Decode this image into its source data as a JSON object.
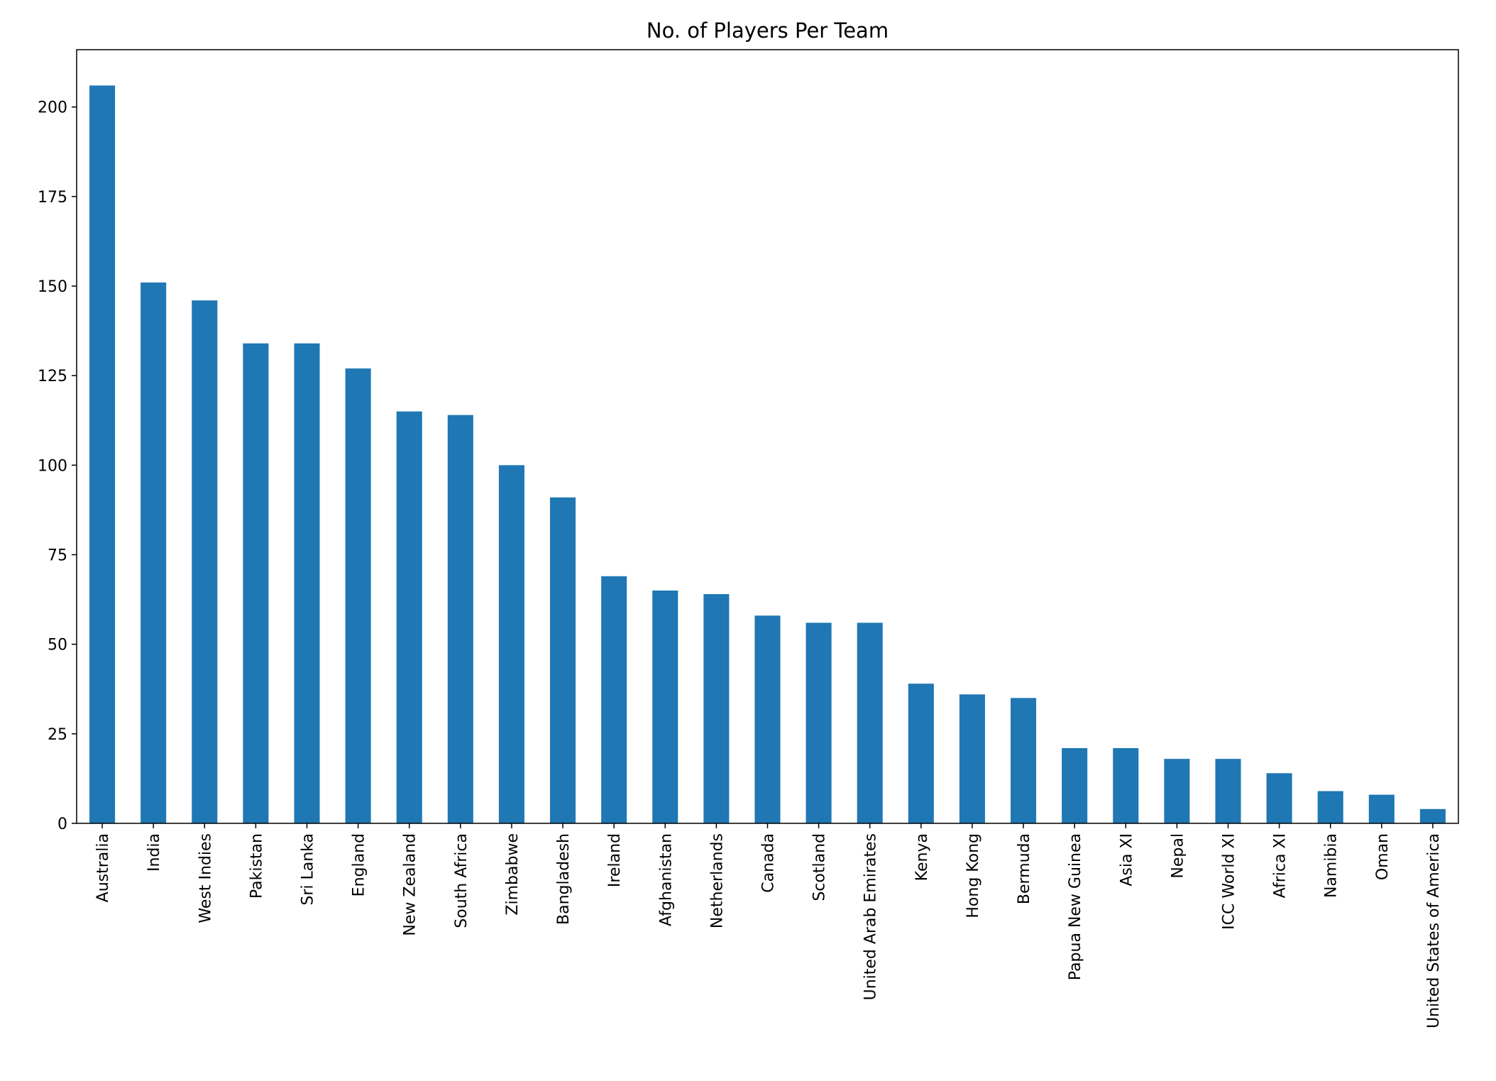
{
  "chart_data": {
    "type": "bar",
    "title": "No. of Players Per Team",
    "xlabel": "",
    "ylabel": "",
    "categories": [
      "Australia",
      "India",
      "West Indies",
      "Pakistan",
      "Sri Lanka",
      "England",
      "New Zealand",
      "South Africa",
      "Zimbabwe",
      "Bangladesh",
      "Ireland",
      "Afghanistan",
      "Netherlands",
      "Canada",
      "Scotland",
      "United Arab Emirates",
      "Kenya",
      "Hong Kong",
      "Bermuda",
      "Papua New Guinea",
      "Asia XI",
      "Nepal",
      "ICC World XI",
      "Africa XI",
      "Namibia",
      "Oman",
      "United States of America"
    ],
    "values": [
      206,
      151,
      146,
      134,
      134,
      127,
      115,
      114,
      100,
      91,
      69,
      65,
      64,
      58,
      56,
      56,
      39,
      36,
      35,
      21,
      21,
      18,
      18,
      14,
      9,
      8,
      4
    ],
    "ylim": [
      0,
      216
    ],
    "yticks": [
      0,
      25,
      50,
      75,
      100,
      125,
      150,
      175,
      200
    ],
    "grid": false,
    "bar_color": "#1f77b4",
    "label_rotation": "vertical"
  }
}
